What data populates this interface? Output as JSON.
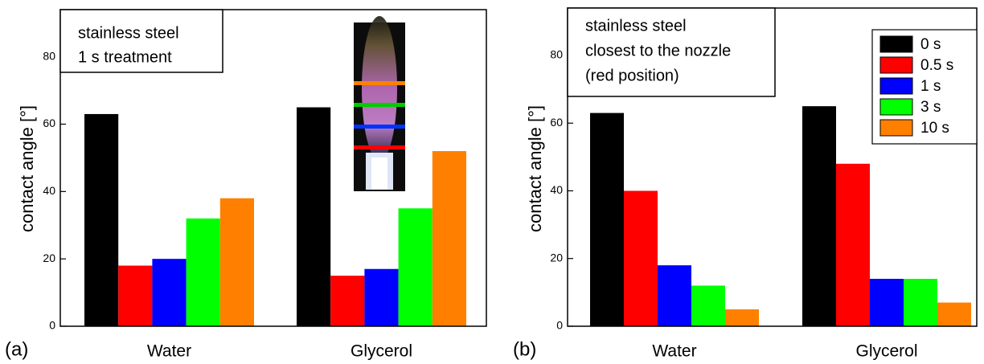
{
  "chart_data": [
    {
      "type": "bar",
      "panel_label": "(a)",
      "ylabel": "contact angle [°]",
      "annotation": [
        "stainless steel",
        "1 s treatment"
      ],
      "categories": [
        "Water",
        "Glycerol"
      ],
      "series": [
        {
          "color": "#000000",
          "values": [
            63,
            65
          ]
        },
        {
          "color": "#ff0000",
          "values": [
            18,
            15
          ]
        },
        {
          "color": "#0000ff",
          "values": [
            20,
            17
          ]
        },
        {
          "color": "#00ff00",
          "values": [
            32,
            35
          ]
        },
        {
          "color": "#ff8000",
          "values": [
            38,
            52
          ]
        }
      ],
      "ylim": [
        0,
        94
      ],
      "yticks": [
        0,
        20,
        40,
        60,
        80
      ]
    },
    {
      "type": "bar",
      "panel_label": "(b)",
      "ylabel": "contact angle [°]",
      "annotation": [
        "stainless steel",
        "closest to the nozzle",
        "(red position)"
      ],
      "categories": [
        "Water",
        "Glycerol"
      ],
      "series": [
        {
          "name": "0 s",
          "color": "#000000",
          "values": [
            63,
            65
          ]
        },
        {
          "name": "0.5 s",
          "color": "#ff0000",
          "values": [
            40,
            48
          ]
        },
        {
          "name": "1 s",
          "color": "#0000ff",
          "values": [
            18,
            14
          ]
        },
        {
          "name": "3 s",
          "color": "#00ff00",
          "values": [
            12,
            14
          ]
        },
        {
          "name": "10 s",
          "color": "#ff8000",
          "values": [
            5,
            7
          ]
        }
      ],
      "ylim": [
        0,
        94
      ],
      "yticks": [
        0,
        20,
        40,
        60,
        80
      ],
      "legend": "upper right"
    }
  ]
}
